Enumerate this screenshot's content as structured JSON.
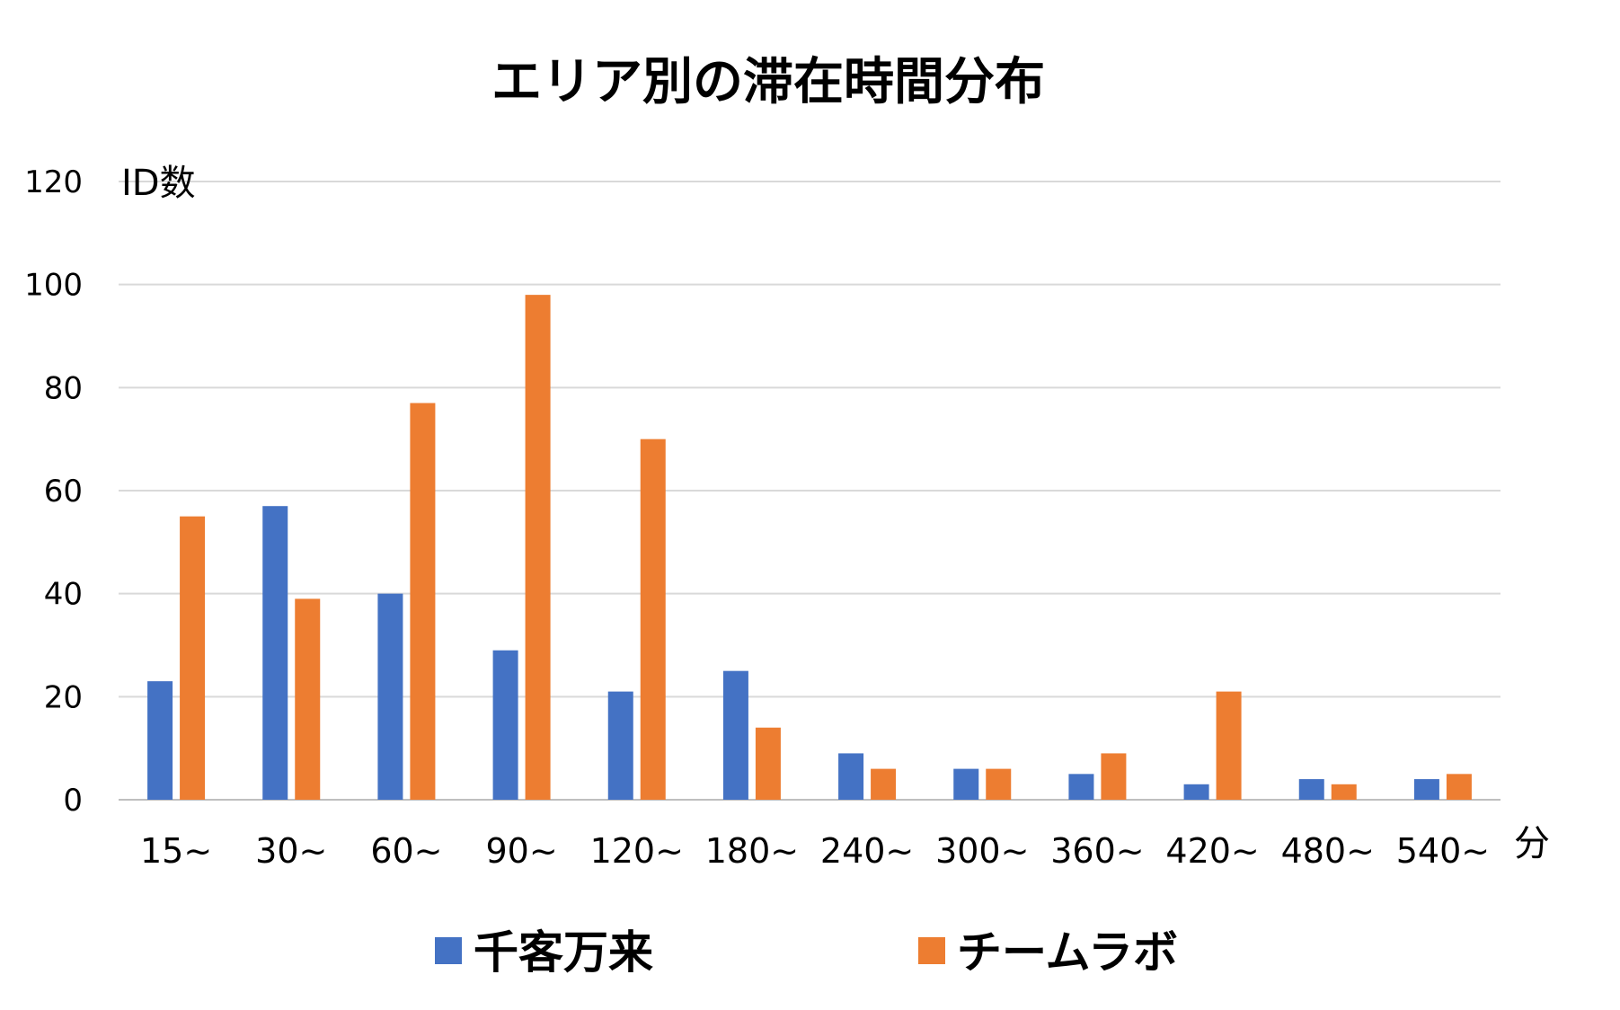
{
  "chart_data": {
    "type": "bar",
    "title": "エリア別の滞在時間分布",
    "xlabel": "分",
    "ylabel": "ID数",
    "categories": [
      "15~",
      "30~",
      "60~",
      "90~",
      "120~",
      "180~",
      "240~",
      "300~",
      "360~",
      "420~",
      "480~",
      "540~"
    ],
    "series": [
      {
        "name": "千客万来",
        "color": "#4472C4",
        "values": [
          23,
          57,
          40,
          29,
          21,
          25,
          9,
          6,
          5,
          3,
          4,
          4
        ]
      },
      {
        "name": "チームラボ",
        "color": "#ED7D31",
        "values": [
          55,
          39,
          77,
          98,
          70,
          14,
          6,
          6,
          9,
          21,
          3,
          5
        ]
      }
    ],
    "ylim": [
      0,
      120
    ],
    "yticks": [
      0,
      20,
      40,
      60,
      80,
      100,
      120
    ],
    "grid": true,
    "legend_position": "bottom"
  }
}
